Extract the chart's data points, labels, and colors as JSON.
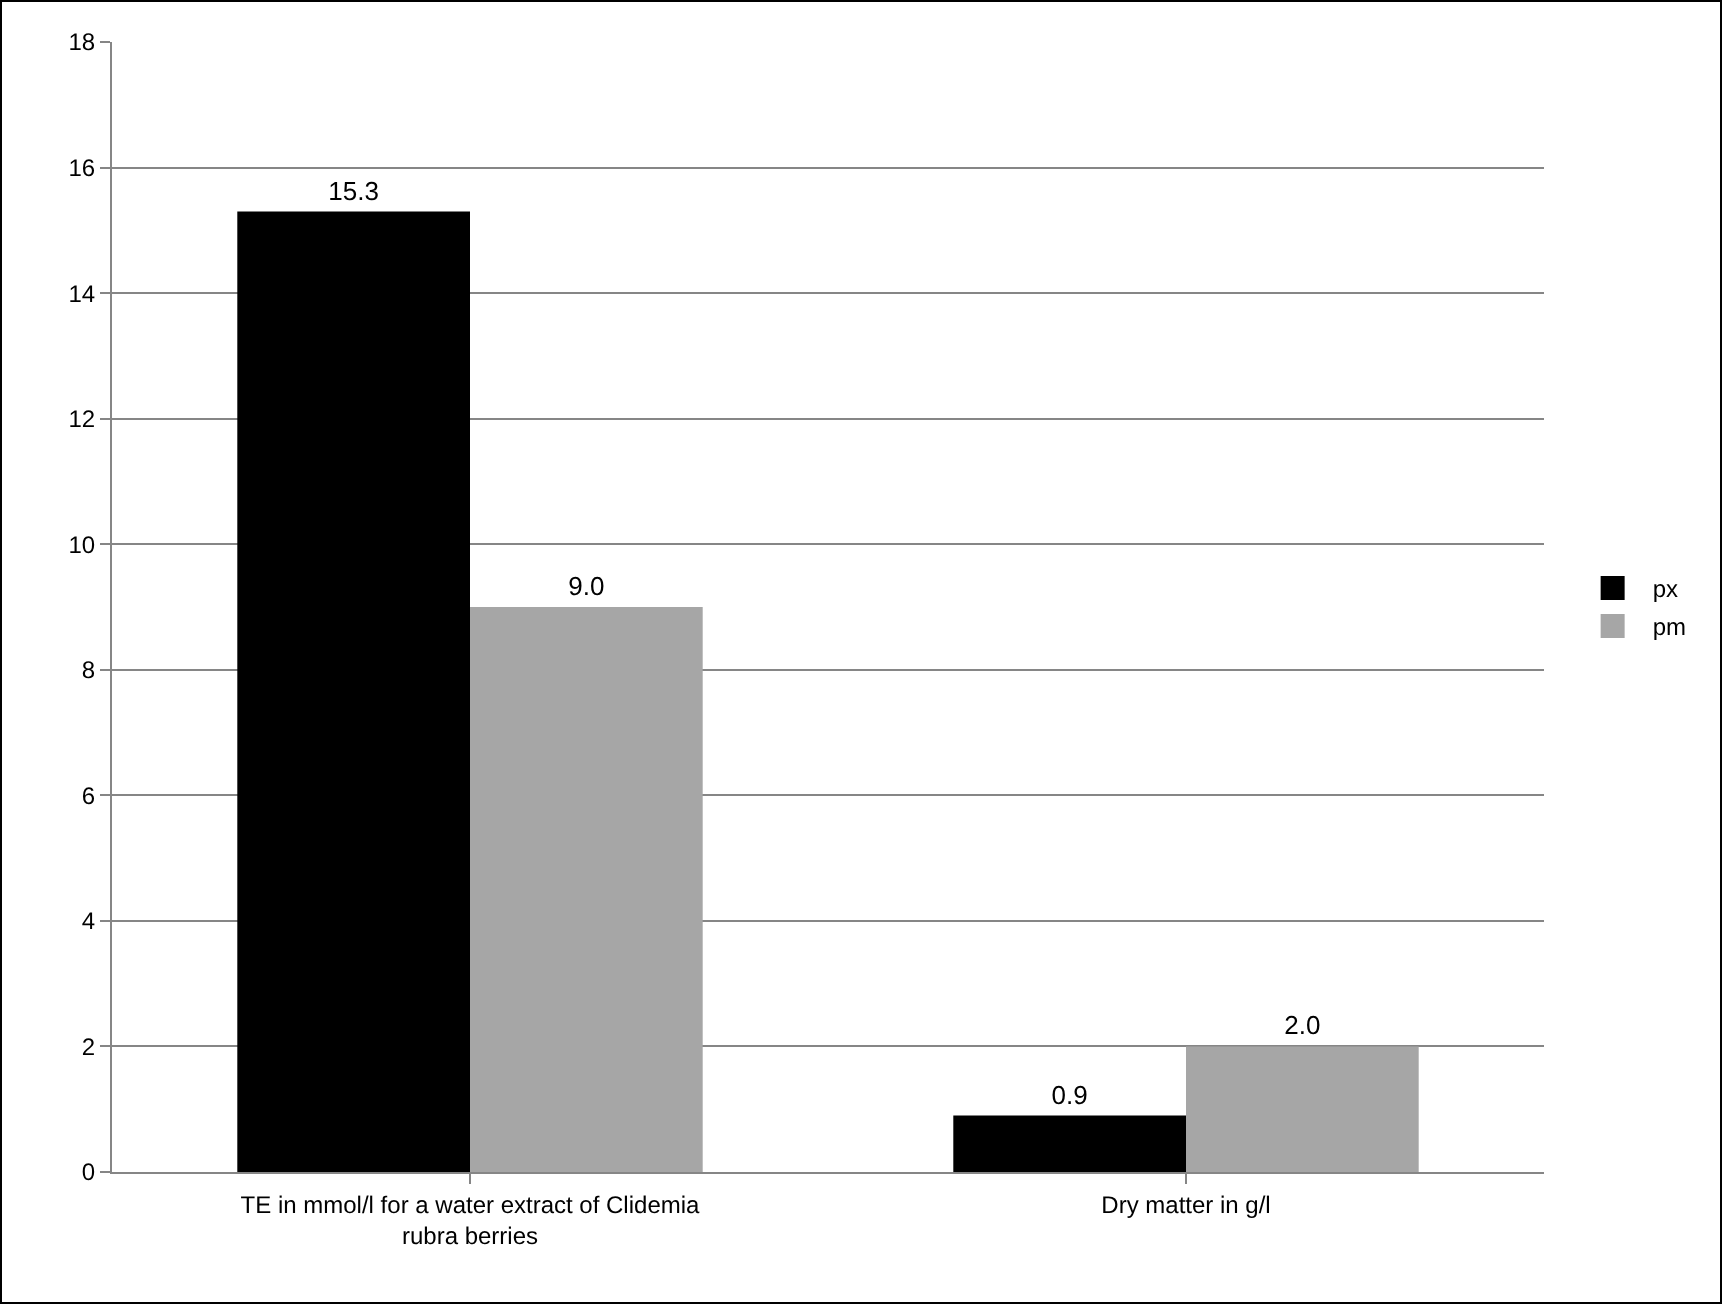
{
  "chart_data": {
    "type": "bar",
    "categories": [
      "TE in mmol/l for a water extract of Clidemia rubra berries",
      "Dry matter in g/l"
    ],
    "series": [
      {
        "name": "px",
        "color": "#000000",
        "values": [
          15.3,
          0.9
        ],
        "value_labels": [
          "15.3",
          "0.9"
        ]
      },
      {
        "name": "pm",
        "color": "#a6a6a6",
        "values": [
          9.0,
          2.0
        ],
        "value_labels": [
          "9.0",
          "2.0"
        ]
      }
    ],
    "ylim": [
      0,
      18
    ],
    "yticks": [
      0,
      2,
      4,
      6,
      8,
      10,
      12,
      14,
      16,
      18
    ],
    "grid": "y",
    "legend": "right"
  }
}
